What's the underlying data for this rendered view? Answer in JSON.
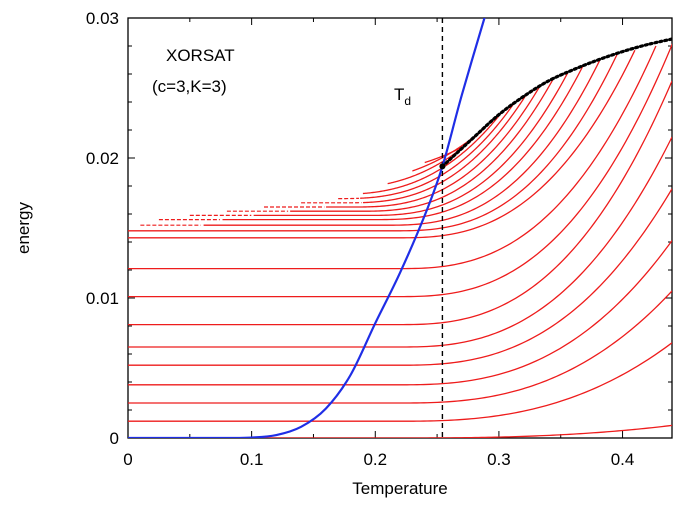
{
  "chart_data": {
    "type": "line",
    "title": "",
    "xlabel": "Temperature",
    "ylabel": "energy",
    "xlim": [
      0,
      0.44
    ],
    "ylim": [
      0,
      0.03
    ],
    "x_ticks": [
      0,
      0.1,
      0.2,
      0.3,
      0.4
    ],
    "x_tick_labels": [
      "0",
      "0.1",
      "0.2",
      "0.3",
      "0.4"
    ],
    "y_ticks": [
      0,
      0.01,
      0.02,
      0.03
    ],
    "y_tick_labels": [
      "0",
      "0.01",
      "0.02",
      "0.03"
    ],
    "annotations": {
      "model": "XORSAT",
      "params": "(c=3,K=3)",
      "marker_base": "T",
      "marker_sub": "d",
      "td_x": 0.2543
    },
    "colors": {
      "red": "#ee1c1c",
      "blue": "#1f2ee6",
      "dashed": "#000000",
      "dotted": "#000000"
    },
    "series": [
      {
        "color": "#1f2ee6",
        "points": [
          [
            0.0,
            0.0
          ],
          [
            0.05,
            0.0
          ],
          [
            0.08,
            0.0
          ],
          [
            0.1,
            3e-05
          ],
          [
            0.12,
            0.00021
          ],
          [
            0.14,
            0.0008
          ],
          [
            0.16,
            0.0021
          ],
          [
            0.18,
            0.0045
          ],
          [
            0.2,
            0.0082
          ],
          [
            0.22,
            0.0118
          ],
          [
            0.24,
            0.0159
          ],
          [
            0.2543,
            0.0194
          ],
          [
            0.27,
            0.0245
          ],
          [
            0.29,
            0.0305
          ]
        ]
      },
      {
        "color": "#000000",
        "style": "dotted",
        "points": [
          [
            0.2543,
            0.0194
          ],
          [
            0.28,
            0.0215
          ],
          [
            0.3,
            0.0231
          ],
          [
            0.32,
            0.0244
          ],
          [
            0.34,
            0.0255
          ],
          [
            0.36,
            0.0263
          ],
          [
            0.38,
            0.027
          ],
          [
            0.4,
            0.0276
          ],
          [
            0.42,
            0.0281
          ],
          [
            0.44,
            0.0285
          ]
        ]
      }
    ],
    "red_curves": {
      "description_none": "",
      "clean": [
        {
          "e0": 0.0,
          "t_end": 0.44,
          "e_end": 0.0009
        },
        {
          "e0": 0.0012,
          "t_end": 0.44,
          "e_end": 0.0068
        },
        {
          "e0": 0.0025,
          "t_end": 0.44,
          "e_end": 0.0105
        },
        {
          "e0": 0.0038,
          "t_end": 0.44,
          "e_end": 0.0141
        },
        {
          "e0": 0.0052,
          "t_end": 0.44,
          "e_end": 0.0178
        },
        {
          "e0": 0.0065,
          "t_end": 0.44,
          "e_end": 0.0215
        },
        {
          "e0": 0.0081,
          "t_end": 0.44,
          "e_end": 0.0255
        },
        {
          "e0": 0.0101,
          "t_end": 0.441,
          "e_end": 0.0283
        },
        {
          "e0": 0.0121,
          "t_end": 0.427,
          "e_end": 0.028
        },
        {
          "e0": 0.0143,
          "t_end": 0.41,
          "e_end": 0.0277
        }
      ],
      "upper": [
        {
          "e0": 0.0148,
          "x_start": 0.0,
          "t_end": 0.396
        },
        {
          "e0": 0.0152,
          "x_start": 0.01,
          "t_end": 0.382
        },
        {
          "e0": 0.0156,
          "x_start": 0.025,
          "t_end": 0.368
        },
        {
          "e0": 0.0159,
          "x_start": 0.05,
          "t_end": 0.356
        },
        {
          "e0": 0.0162,
          "x_start": 0.08,
          "t_end": 0.344
        },
        {
          "e0": 0.0165,
          "x_start": 0.11,
          "t_end": 0.333
        },
        {
          "e0": 0.0168,
          "x_start": 0.14,
          "t_end": 0.322
        },
        {
          "e0": 0.0171,
          "x_start": 0.17,
          "t_end": 0.312
        },
        {
          "e0": 0.0174,
          "x_start": 0.19,
          "t_end": 0.302
        },
        {
          "e0": 0.0178,
          "x_start": 0.21,
          "t_end": 0.292
        },
        {
          "e0": 0.0182,
          "x_start": 0.23,
          "t_end": 0.283
        },
        {
          "e0": 0.0187,
          "x_start": 0.24,
          "t_end": 0.272
        }
      ]
    }
  }
}
